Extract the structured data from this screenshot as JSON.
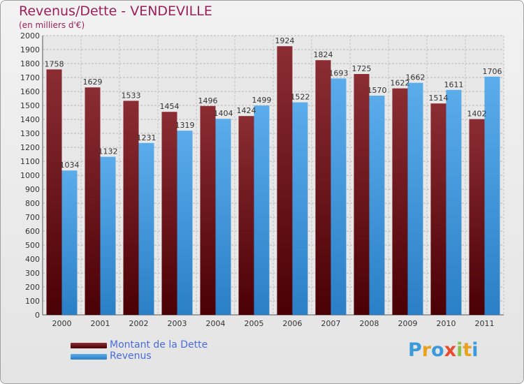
{
  "chart_data": {
    "type": "bar",
    "title": "Revenus/Dette - VENDEVILLE",
    "subtitle": "(en milliers d'€)",
    "categories": [
      "2000",
      "2001",
      "2002",
      "2003",
      "2004",
      "2005",
      "2006",
      "2007",
      "2008",
      "2009",
      "2010",
      "2011"
    ],
    "series": [
      {
        "name": "Montant de la Dette",
        "color": "#7a1a1f",
        "values": [
          1758,
          1629,
          1533,
          1454,
          1496,
          1424,
          1924,
          1824,
          1725,
          1622,
          1514,
          1402
        ]
      },
      {
        "name": "Revenus",
        "color": "#3a9be0",
        "values": [
          1034,
          1132,
          1231,
          1319,
          1404,
          1499,
          1522,
          1693,
          1570,
          1662,
          1611,
          1706
        ]
      }
    ],
    "ylim": [
      0,
      2000
    ],
    "ytick_step": 100,
    "grid": true,
    "legend_position": "bottom-left"
  },
  "brand": {
    "letters": [
      {
        "char": "P",
        "color": "#3b9ad9"
      },
      {
        "char": "r",
        "color": "#e8a21f"
      },
      {
        "char": "o",
        "color": "#3b9ad9"
      },
      {
        "char": "x",
        "color": "#e74b2f"
      },
      {
        "char": "i",
        "color": "#8bc34a"
      },
      {
        "char": "t",
        "color": "#e8a21f"
      },
      {
        "char": "i",
        "color": "#3b9ad9"
      }
    ]
  }
}
